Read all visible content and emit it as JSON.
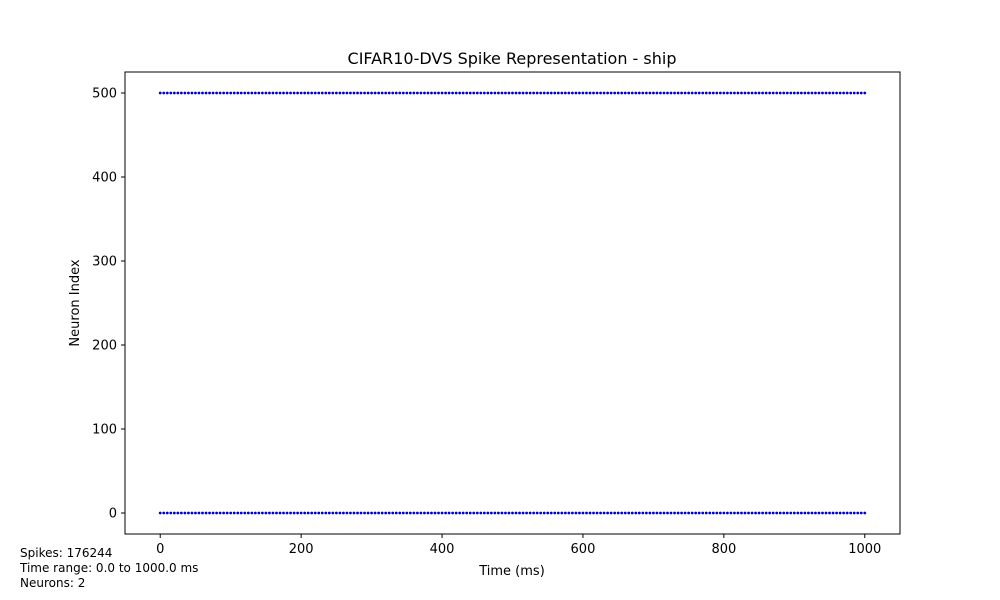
{
  "chart_data": {
    "type": "scatter",
    "title": "CIFAR10-DVS Spike Representation - ship",
    "xlabel": "Time (ms)",
    "ylabel": "Neuron Index",
    "xlim": [
      -50,
      1050
    ],
    "ylim": [
      -25,
      525
    ],
    "xticks": [
      0,
      200,
      400,
      600,
      800,
      1000
    ],
    "yticks": [
      0,
      100,
      200,
      300,
      400,
      500
    ],
    "grid": false,
    "legend": "none",
    "marker_color": "#0000cc",
    "series": [
      {
        "neuron": 0,
        "t_start": 0,
        "t_end": 1000,
        "t_step": 5
      },
      {
        "neuron": 500,
        "t_start": 0,
        "t_end": 1000,
        "t_step": 5
      }
    ]
  },
  "info": {
    "spikes": "Spikes: 176244",
    "time_range": "Time range: 0.0 to 1000.0 ms",
    "neurons": "Neurons: 2"
  }
}
